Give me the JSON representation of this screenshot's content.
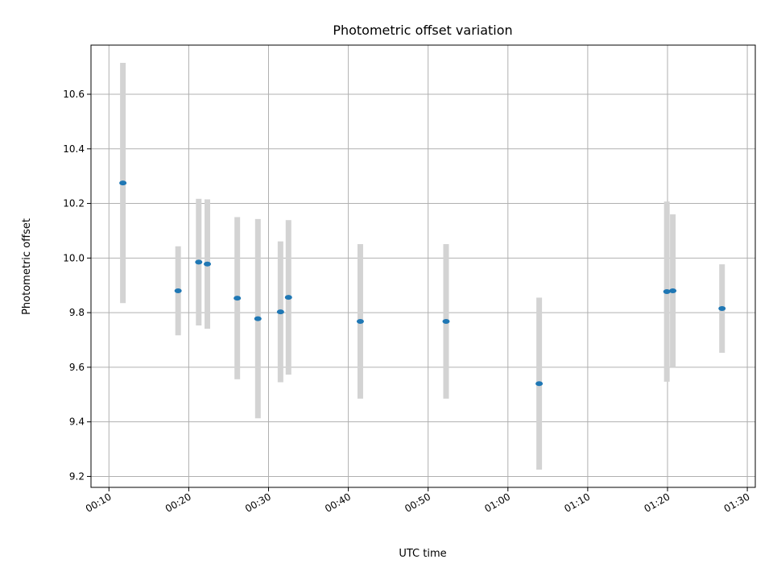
{
  "chart_data": {
    "type": "scatter",
    "title": "Photometric offset variation",
    "xlabel": "UTC time",
    "ylabel": "Photometric offset",
    "x_tick_labels": [
      "00:10",
      "00:20",
      "00:30",
      "00:40",
      "00:50",
      "01:00",
      "01:10",
      "01:20",
      "01:30"
    ],
    "y_tick_labels": [
      "9.2",
      "9.4",
      "9.6",
      "9.8",
      "10.0",
      "10.2",
      "10.4",
      "10.6"
    ],
    "xlim": [
      "00:07:45",
      "01:31:00"
    ],
    "ylim": [
      9.16,
      10.78
    ],
    "grid": true,
    "marker_color": "#1f77b4",
    "errorbar_color": "#d3d3d3",
    "points": [
      {
        "x": "00:11:45",
        "y": 10.275,
        "err": 0.44
      },
      {
        "x": "00:18:40",
        "y": 9.88,
        "err": 0.163
      },
      {
        "x": "00:21:15",
        "y": 9.985,
        "err": 0.232
      },
      {
        "x": "00:22:20",
        "y": 9.978,
        "err": 0.237
      },
      {
        "x": "00:26:05",
        "y": 9.853,
        "err": 0.297
      },
      {
        "x": "00:28:40",
        "y": 9.778,
        "err": 0.365
      },
      {
        "x": "00:31:30",
        "y": 9.803,
        "err": 0.258
      },
      {
        "x": "00:32:30",
        "y": 9.856,
        "err": 0.283
      },
      {
        "x": "00:41:30",
        "y": 9.768,
        "err": 0.283
      },
      {
        "x": "00:52:15",
        "y": 9.768,
        "err": 0.283
      },
      {
        "x": "01:03:55",
        "y": 9.54,
        "err": 0.315
      },
      {
        "x": "01:19:55",
        "y": 9.877,
        "err": 0.33
      },
      {
        "x": "01:20:40",
        "y": 9.88,
        "err": 0.28
      },
      {
        "x": "01:26:50",
        "y": 9.815,
        "err": 0.162
      }
    ]
  }
}
